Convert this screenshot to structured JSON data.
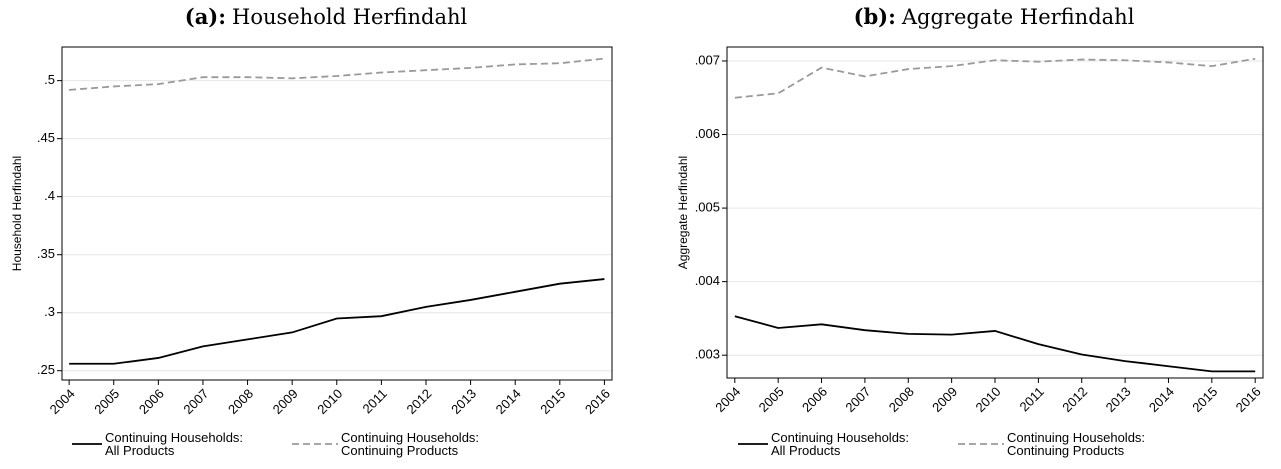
{
  "chart_data": [
    {
      "type": "line",
      "panel": "(a):",
      "title": "Household Herfindahl",
      "y_label": "Household Herfindahl",
      "x": [
        2004,
        2005,
        2006,
        2007,
        2008,
        2009,
        2010,
        2011,
        2012,
        2013,
        2014,
        2015,
        2016
      ],
      "xlim": [
        2003.84,
        2016.17
      ],
      "xticks": [
        2004,
        2005,
        2006,
        2007,
        2008,
        2009,
        2010,
        2011,
        2012,
        2013,
        2014,
        2015,
        2016
      ],
      "ylim": [
        0.242,
        0.529
      ],
      "yticks": [
        {
          "value": 0.25,
          "label": ".25"
        },
        {
          "value": 0.3,
          "label": ".3"
        },
        {
          "value": 0.35,
          "label": ".35"
        },
        {
          "value": 0.4,
          "label": ".4"
        },
        {
          "value": 0.45,
          "label": ".45"
        },
        {
          "value": 0.5,
          "label": ".5"
        }
      ],
      "grid": true,
      "series": [
        {
          "name": "Continuing Households: All Products",
          "color": "#000000",
          "style": "solid",
          "values": [
            0.256,
            0.256,
            0.261,
            0.271,
            0.277,
            0.283,
            0.295,
            0.297,
            0.305,
            0.311,
            0.318,
            0.325,
            0.329
          ]
        },
        {
          "name": "Continuing Households: Continuing Products",
          "color": "#9a9a9a",
          "style": "dashed",
          "values": [
            0.492,
            0.495,
            0.497,
            0.503,
            0.503,
            0.502,
            0.504,
            0.507,
            0.509,
            0.511,
            0.514,
            0.515,
            0.519
          ]
        }
      ]
    },
    {
      "type": "line",
      "panel": "(b):",
      "title": "Aggregate Herfindahl",
      "y_label": "Aggregate Herfindahl",
      "x": [
        2004,
        2005,
        2006,
        2007,
        2008,
        2009,
        2010,
        2011,
        2012,
        2013,
        2014,
        2015,
        2016
      ],
      "xlim": [
        2003.82,
        2016.18
      ],
      "xticks": [
        2004,
        2005,
        2006,
        2007,
        2008,
        2009,
        2010,
        2011,
        2012,
        2013,
        2014,
        2015,
        2016
      ],
      "ylim": [
        0.00269,
        0.00719
      ],
      "yticks": [
        {
          "value": 0.003,
          "label": ".003"
        },
        {
          "value": 0.004,
          "label": ".004"
        },
        {
          "value": 0.005,
          "label": ".005"
        },
        {
          "value": 0.006,
          "label": ".006"
        },
        {
          "value": 0.007,
          "label": ".007"
        }
      ],
      "grid": true,
      "series": [
        {
          "name": "Continuing Households: All Products",
          "color": "#000000",
          "style": "solid",
          "values": [
            0.00353,
            0.00337,
            0.00342,
            0.00334,
            0.00329,
            0.00328,
            0.00333,
            0.00315,
            0.00301,
            0.00292,
            0.00285,
            0.00278,
            0.00278
          ]
        },
        {
          "name": "Continuing Households: Continuing Products",
          "color": "#9a9a9a",
          "style": "dashed",
          "values": [
            0.0065,
            0.00656,
            0.00691,
            0.00679,
            0.00689,
            0.00693,
            0.00701,
            0.00699,
            0.00702,
            0.00701,
            0.00698,
            0.00693,
            0.00703
          ]
        }
      ]
    }
  ]
}
